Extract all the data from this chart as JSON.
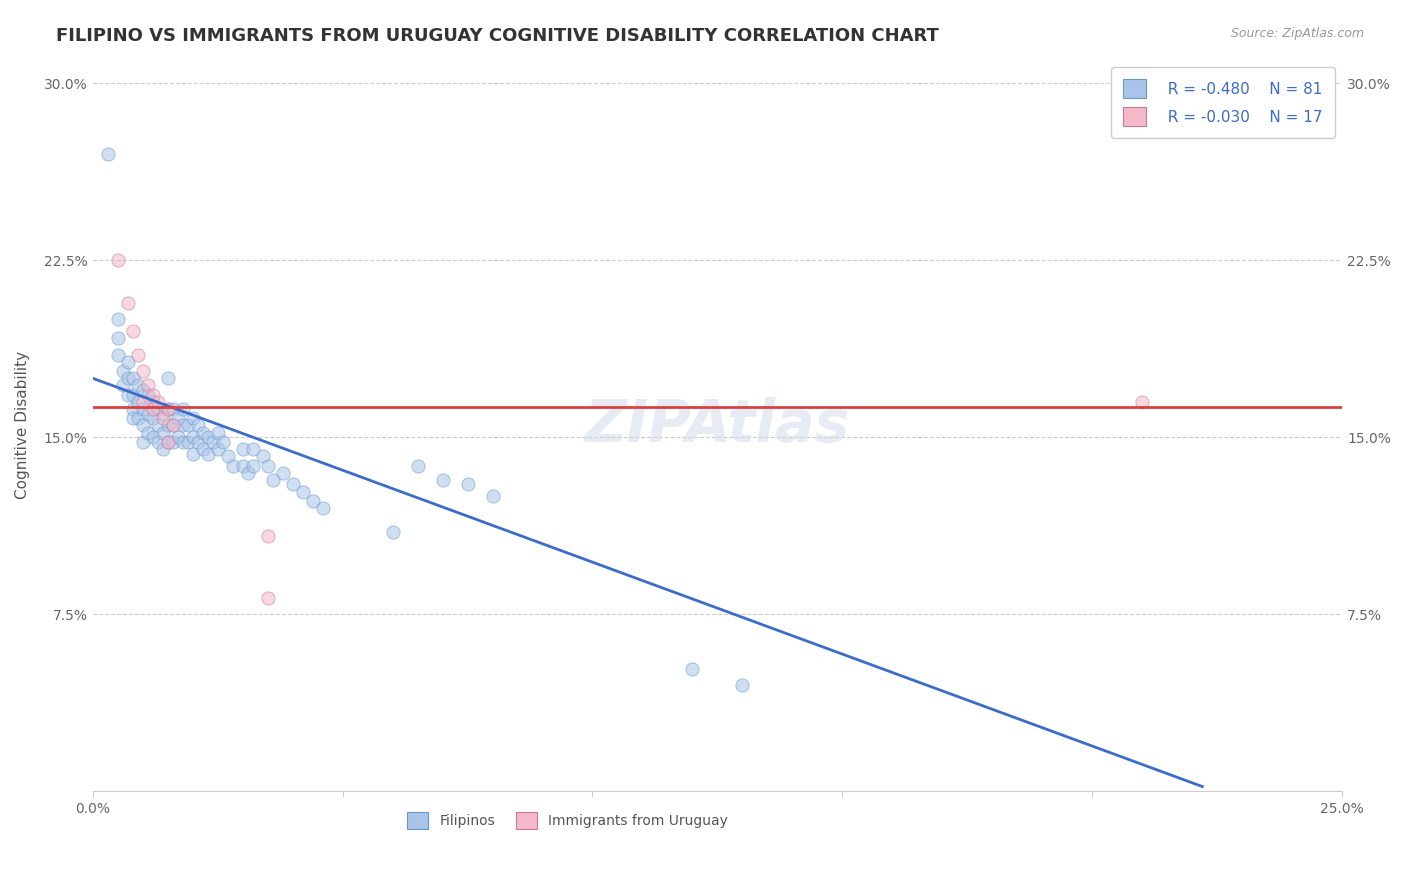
{
  "title": "FILIPINO VS IMMIGRANTS FROM URUGUAY COGNITIVE DISABILITY CORRELATION CHART",
  "source": "Source: ZipAtlas.com",
  "ylabel_label": "Cognitive Disability",
  "xlim": [
    0.0,
    0.25
  ],
  "ylim": [
    0.0,
    0.31
  ],
  "xticks": [
    0.0,
    0.05,
    0.1,
    0.15,
    0.2,
    0.25
  ],
  "xticklabels": [
    "0.0%",
    "",
    "",
    "",
    "",
    "25.0%"
  ],
  "yticks": [
    0.0,
    0.075,
    0.15,
    0.225,
    0.3
  ],
  "yticklabels": [
    "",
    "7.5%",
    "15.0%",
    "22.5%",
    "30.0%"
  ],
  "grid_color": "#cccccc",
  "background_color": "#ffffff",
  "legend_r1": "R = -0.480",
  "legend_n1": "N = 81",
  "legend_r2": "R = -0.030",
  "legend_n2": "N = 17",
  "filipino_color": "#aac4e8",
  "uruguay_color": "#f4b8c8",
  "line_filipino_color": "#3b6cc9",
  "line_uruguay_color": "#d94040",
  "filipino_edge_color": "#6699cc",
  "uruguay_edge_color": "#cc7799",
  "filipino_points": [
    [
      0.003,
      0.27
    ],
    [
      0.005,
      0.2
    ],
    [
      0.005,
      0.192
    ],
    [
      0.005,
      0.185
    ],
    [
      0.006,
      0.178
    ],
    [
      0.006,
      0.172
    ],
    [
      0.007,
      0.182
    ],
    [
      0.007,
      0.175
    ],
    [
      0.007,
      0.168
    ],
    [
      0.008,
      0.175
    ],
    [
      0.008,
      0.168
    ],
    [
      0.008,
      0.162
    ],
    [
      0.008,
      0.158
    ],
    [
      0.009,
      0.172
    ],
    [
      0.009,
      0.165
    ],
    [
      0.009,
      0.158
    ],
    [
      0.01,
      0.17
    ],
    [
      0.01,
      0.162
    ],
    [
      0.01,
      0.155
    ],
    [
      0.01,
      0.148
    ],
    [
      0.011,
      0.168
    ],
    [
      0.011,
      0.16
    ],
    [
      0.011,
      0.152
    ],
    [
      0.012,
      0.165
    ],
    [
      0.012,
      0.158
    ],
    [
      0.012,
      0.15
    ],
    [
      0.013,
      0.162
    ],
    [
      0.013,
      0.155
    ],
    [
      0.013,
      0.148
    ],
    [
      0.014,
      0.16
    ],
    [
      0.014,
      0.152
    ],
    [
      0.014,
      0.145
    ],
    [
      0.015,
      0.175
    ],
    [
      0.015,
      0.162
    ],
    [
      0.015,
      0.155
    ],
    [
      0.015,
      0.148
    ],
    [
      0.016,
      0.162
    ],
    [
      0.016,
      0.155
    ],
    [
      0.016,
      0.148
    ],
    [
      0.017,
      0.158
    ],
    [
      0.017,
      0.15
    ],
    [
      0.018,
      0.162
    ],
    [
      0.018,
      0.155
    ],
    [
      0.018,
      0.148
    ],
    [
      0.019,
      0.155
    ],
    [
      0.019,
      0.148
    ],
    [
      0.02,
      0.158
    ],
    [
      0.02,
      0.15
    ],
    [
      0.02,
      0.143
    ],
    [
      0.021,
      0.155
    ],
    [
      0.021,
      0.148
    ],
    [
      0.022,
      0.152
    ],
    [
      0.022,
      0.145
    ],
    [
      0.023,
      0.15
    ],
    [
      0.023,
      0.143
    ],
    [
      0.024,
      0.148
    ],
    [
      0.025,
      0.152
    ],
    [
      0.025,
      0.145
    ],
    [
      0.026,
      0.148
    ],
    [
      0.027,
      0.142
    ],
    [
      0.028,
      0.138
    ],
    [
      0.03,
      0.145
    ],
    [
      0.03,
      0.138
    ],
    [
      0.031,
      0.135
    ],
    [
      0.032,
      0.145
    ],
    [
      0.032,
      0.138
    ],
    [
      0.034,
      0.142
    ],
    [
      0.035,
      0.138
    ],
    [
      0.036,
      0.132
    ],
    [
      0.038,
      0.135
    ],
    [
      0.04,
      0.13
    ],
    [
      0.042,
      0.127
    ],
    [
      0.044,
      0.123
    ],
    [
      0.046,
      0.12
    ],
    [
      0.06,
      0.11
    ],
    [
      0.065,
      0.138
    ],
    [
      0.07,
      0.132
    ],
    [
      0.075,
      0.13
    ],
    [
      0.08,
      0.125
    ],
    [
      0.12,
      0.052
    ],
    [
      0.13,
      0.045
    ]
  ],
  "uruguay_points": [
    [
      0.005,
      0.225
    ],
    [
      0.007,
      0.207
    ],
    [
      0.008,
      0.195
    ],
    [
      0.009,
      0.185
    ],
    [
      0.01,
      0.178
    ],
    [
      0.01,
      0.165
    ],
    [
      0.011,
      0.172
    ],
    [
      0.012,
      0.168
    ],
    [
      0.012,
      0.162
    ],
    [
      0.013,
      0.165
    ],
    [
      0.014,
      0.158
    ],
    [
      0.015,
      0.162
    ],
    [
      0.015,
      0.148
    ],
    [
      0.016,
      0.155
    ],
    [
      0.035,
      0.108
    ],
    [
      0.035,
      0.082
    ],
    [
      0.21,
      0.165
    ]
  ],
  "title_fontsize": 13,
  "axis_fontsize": 11,
  "tick_fontsize": 10,
  "point_size": 90,
  "point_alpha": 0.55,
  "line_y_start_fil": 0.175,
  "line_y_end_fil": 0.002,
  "line_x_end_fil": 0.222,
  "line_y_flat_uru": 0.163
}
